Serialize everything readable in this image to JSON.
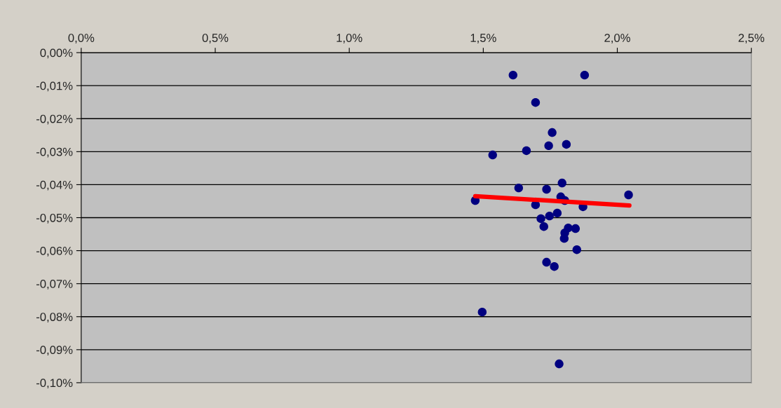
{
  "chart_data": {
    "type": "scatter",
    "xlim": [
      0,
      2.5
    ],
    "ylim": [
      -0.1,
      0
    ],
    "xticks": [
      {
        "value": 0,
        "label": "0,0%"
      },
      {
        "value": 0.5,
        "label": "0,5%"
      },
      {
        "value": 1.0,
        "label": "1,0%"
      },
      {
        "value": 1.5,
        "label": "1,5%"
      },
      {
        "value": 2.0,
        "label": "2,0%"
      },
      {
        "value": 2.5,
        "label": "2,5%"
      }
    ],
    "yticks": [
      {
        "value": 0,
        "label": "0,00%"
      },
      {
        "value": -0.01,
        "label": "-0,01%"
      },
      {
        "value": -0.02,
        "label": "-0,02%"
      },
      {
        "value": -0.03,
        "label": "-0,03%"
      },
      {
        "value": -0.04,
        "label": "-0,04%"
      },
      {
        "value": -0.05,
        "label": "-0,05%"
      },
      {
        "value": -0.06,
        "label": "-0,06%"
      },
      {
        "value": -0.07,
        "label": "-0,07%"
      },
      {
        "value": -0.08,
        "label": "-0,08%"
      },
      {
        "value": -0.09,
        "label": "-0,09%"
      },
      {
        "value": -0.1,
        "label": "-0,10%"
      }
    ],
    "grid": "y",
    "marker": "circle",
    "legend": false,
    "series": [
      {
        "color": "#000080",
        "x": [
          1.611,
          1.878,
          1.695,
          1.757,
          1.535,
          1.661,
          1.744,
          1.81,
          1.632,
          1.736,
          1.794,
          1.789,
          1.804,
          1.47,
          1.695,
          1.872,
          2.042,
          1.776,
          1.747,
          1.715,
          1.726,
          1.817,
          1.844,
          1.804,
          1.802,
          1.849,
          1.736,
          1.765,
          1.496,
          1.783
        ],
        "values": [
          -0.0068,
          -0.0068,
          -0.0151,
          -0.0242,
          -0.031,
          -0.0297,
          -0.0282,
          -0.0278,
          -0.041,
          -0.0414,
          -0.0395,
          -0.0437,
          -0.0448,
          -0.0448,
          -0.0461,
          -0.0467,
          -0.0431,
          -0.0486,
          -0.0495,
          -0.0503,
          -0.0527,
          -0.0531,
          -0.0533,
          -0.0546,
          -0.0563,
          -0.0597,
          -0.0635,
          -0.0648,
          -0.0786,
          -0.0943
        ]
      },
      {
        "type": "line",
        "color": "#ff0000",
        "x": [
          1.47,
          2.045
        ],
        "values": [
          -0.0435,
          -0.0463
        ],
        "line_style": "solid",
        "marker": "none"
      }
    ]
  }
}
